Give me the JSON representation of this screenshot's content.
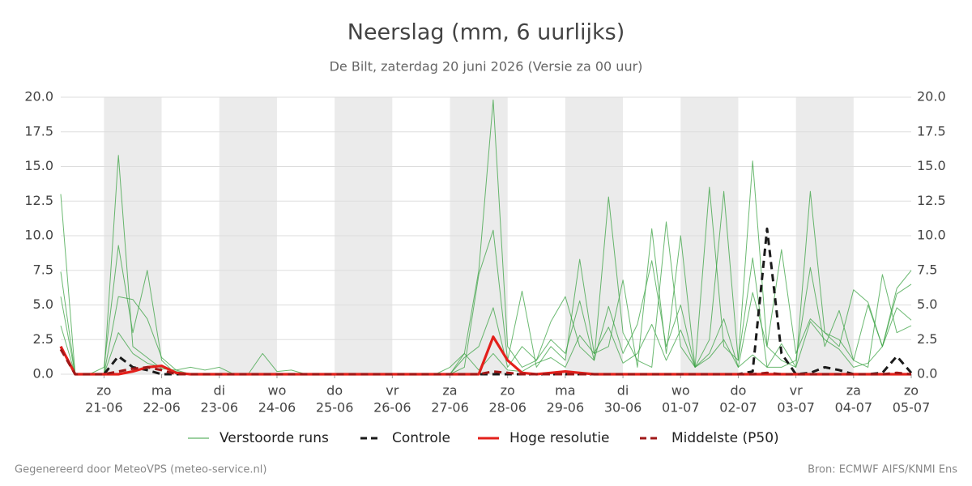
{
  "chart_data": {
    "type": "line",
    "title": "Neerslag (mm, 6 uurlijks)",
    "subtitle": "De Bilt, zaterdag 20 juni 2026 (Versie za 00 uur)",
    "footer_left": "Gegenereerd door MeteoVPS (meteo-service.nl)",
    "footer_right": "Bron: ECMWF AIFS/KNMI Ens",
    "x": [
      -0.75,
      -0.5,
      -0.25,
      0,
      0.25,
      0.5,
      0.75,
      1,
      1.25,
      1.5,
      1.75,
      2,
      2.25,
      2.5,
      2.75,
      3,
      3.25,
      3.5,
      3.75,
      4,
      4.25,
      4.5,
      4.75,
      5,
      5.25,
      5.5,
      5.75,
      6,
      6.25,
      6.5,
      6.75,
      7,
      7.25,
      7.5,
      7.75,
      8,
      8.25,
      8.5,
      8.75,
      9,
      9.25,
      9.5,
      9.75,
      10,
      10.25,
      10.5,
      10.75,
      11,
      11.25,
      11.5,
      11.75,
      12,
      12.25,
      12.5,
      12.75,
      13,
      13.25,
      13.5,
      13.75,
      14
    ],
    "xlim": [
      -0.75,
      14
    ],
    "xticks": [
      {
        "value": 0,
        "label": "zo",
        "sublabel": "21-06"
      },
      {
        "value": 1,
        "label": "ma",
        "sublabel": "22-06"
      },
      {
        "value": 2,
        "label": "di",
        "sublabel": "23-06"
      },
      {
        "value": 3,
        "label": "wo",
        "sublabel": "24-06"
      },
      {
        "value": 4,
        "label": "do",
        "sublabel": "25-06"
      },
      {
        "value": 5,
        "label": "vr",
        "sublabel": "26-06"
      },
      {
        "value": 6,
        "label": "za",
        "sublabel": "27-06"
      },
      {
        "value": 7,
        "label": "zo",
        "sublabel": "28-06"
      },
      {
        "value": 8,
        "label": "ma",
        "sublabel": "29-06"
      },
      {
        "value": 9,
        "label": "di",
        "sublabel": "30-06"
      },
      {
        "value": 10,
        "label": "wo",
        "sublabel": "01-07"
      },
      {
        "value": 11,
        "label": "do",
        "sublabel": "02-07"
      },
      {
        "value": 12,
        "label": "vr",
        "sublabel": "03-07"
      },
      {
        "value": 13,
        "label": "za",
        "sublabel": "04-07"
      },
      {
        "value": 14,
        "label": "zo",
        "sublabel": "05-07"
      }
    ],
    "ylim": [
      0,
      20
    ],
    "yticks": [
      {
        "value": 0,
        "label": "0.0"
      },
      {
        "value": 2.5,
        "label": "2.5"
      },
      {
        "value": 5,
        "label": "5.0"
      },
      {
        "value": 7.5,
        "label": "7.5"
      },
      {
        "value": 10,
        "label": "10.0"
      },
      {
        "value": 12.5,
        "label": "12.5"
      },
      {
        "value": 15,
        "label": "15.0"
      },
      {
        "value": 17.5,
        "label": "17.5"
      },
      {
        "value": 20,
        "label": "20.0"
      }
    ],
    "grid": true,
    "series": [
      {
        "name": "Verstoorde runs",
        "color": "#3aa142",
        "runs": [
          [
            13,
            0,
            0,
            0,
            15.8,
            2,
            1.2,
            0.4,
            0.3,
            0.5,
            0.3,
            0.5,
            0,
            0,
            0,
            0,
            0,
            0,
            0,
            0,
            0,
            0,
            0,
            0,
            0,
            0,
            0,
            0.5,
            1.5,
            7.5,
            19.8,
            2,
            0.5,
            1,
            3.8,
            5.6,
            2,
            1,
            12.8,
            3,
            1,
            0.5,
            11,
            2,
            0.5,
            13.5,
            2,
            1,
            15.4,
            2,
            1,
            0.5,
            13.2,
            3,
            2,
            6.1,
            5.2,
            2,
            6.2,
            7.5
          ],
          [
            7.4,
            0,
            0,
            0.5,
            9.3,
            3,
            7.5,
            1,
            0,
            0,
            0,
            0,
            0,
            0,
            0,
            0,
            0,
            0,
            0,
            0,
            0,
            0,
            0,
            0,
            0,
            0,
            0,
            0,
            0.5,
            7.2,
            10.4,
            1,
            6,
            0.5,
            2,
            1,
            8.3,
            1.5,
            2,
            6.8,
            0.5,
            10.5,
            1.5,
            10,
            0.5,
            2.5,
            13.2,
            1,
            8.4,
            0.5,
            0.5,
            1,
            7.7,
            2,
            4.6,
            1,
            0.5,
            7.2,
            3,
            3.5
          ],
          [
            5.6,
            0,
            0,
            0,
            5.6,
            5.4,
            4,
            1.2,
            0.3,
            0,
            0,
            0,
            0,
            0,
            1.5,
            0.2,
            0.3,
            0,
            0,
            0,
            0,
            0,
            0,
            0,
            0,
            0,
            0,
            0,
            1.2,
            2,
            4.8,
            0.5,
            2,
            1,
            2.5,
            1.5,
            5.3,
            1,
            4.9,
            1.5,
            3.6,
            8.2,
            2,
            5,
            0.5,
            1.5,
            4,
            0.5,
            5.9,
            2,
            9,
            1.5,
            4,
            3,
            2.5,
            1,
            5,
            2,
            5.8,
            6.5
          ],
          [
            3.5,
            0,
            0,
            0,
            3,
            1.5,
            0.8,
            0.5,
            0.2,
            0,
            0,
            0,
            0,
            0,
            0,
            0,
            0,
            0,
            0,
            0,
            0,
            0,
            0,
            0,
            0,
            0,
            0,
            0,
            1.5,
            0.3,
            1.5,
            0.3,
            0.2,
            0.8,
            1.2,
            0.5,
            2.8,
            1.5,
            3.4,
            0.8,
            1.5,
            3.6,
            1,
            3.2,
            0.5,
            1.2,
            2.5,
            0.5,
            1.4,
            0.5,
            2.2,
            0.5,
            3.8,
            2.5,
            1.8,
            0.5,
            0.8,
            2,
            4.8,
            3.9
          ]
        ]
      },
      {
        "name": "Controle",
        "color": "#1a1a1a",
        "dash": true,
        "values": [
          2,
          0,
          0,
          0,
          1.3,
          0.5,
          0.3,
          0,
          0,
          0,
          0,
          0,
          0,
          0,
          0,
          0,
          0,
          0,
          0,
          0,
          0,
          0,
          0,
          0,
          0,
          0,
          0,
          0,
          0,
          0,
          0,
          0,
          0,
          0,
          0,
          0,
          0,
          0,
          0,
          0,
          0,
          0,
          0,
          0,
          0,
          0,
          0,
          0,
          0.2,
          10.5,
          1.5,
          0,
          0.1,
          0.5,
          0.3,
          0,
          0,
          0.1,
          1.3,
          0.1
        ]
      },
      {
        "name": "Hoge resolutie",
        "color": "#e3201b",
        "values": [
          2,
          0,
          0,
          0,
          0,
          0.2,
          0.5,
          0.6,
          0.1,
          0,
          0,
          0,
          0,
          0,
          0,
          0,
          0,
          0,
          0,
          0,
          0,
          0,
          0,
          0,
          0,
          0,
          0,
          0,
          0,
          0,
          2.7,
          1,
          0.1,
          0,
          0.1,
          0.2,
          0.1,
          0,
          0,
          0,
          0,
          0,
          0,
          0,
          0,
          0,
          0,
          0,
          0,
          0,
          0,
          0,
          0,
          0,
          0,
          0,
          0,
          0,
          0,
          0
        ]
      },
      {
        "name": "Middelste (P50)",
        "color": "#a01818",
        "dash": true,
        "values": [
          1.8,
          0,
          0,
          0,
          0.2,
          0.4,
          0.5,
          0.3,
          0,
          0,
          0,
          0,
          0,
          0,
          0,
          0,
          0,
          0,
          0,
          0,
          0,
          0,
          0,
          0,
          0,
          0,
          0,
          0,
          0,
          0,
          0.2,
          0.1,
          0,
          0,
          0,
          0,
          0,
          0,
          0,
          0,
          0,
          0,
          0,
          0,
          0,
          0,
          0,
          0,
          0,
          0.1,
          0,
          0,
          0,
          0,
          0,
          0,
          0,
          0,
          0.1,
          0
        ]
      }
    ]
  }
}
